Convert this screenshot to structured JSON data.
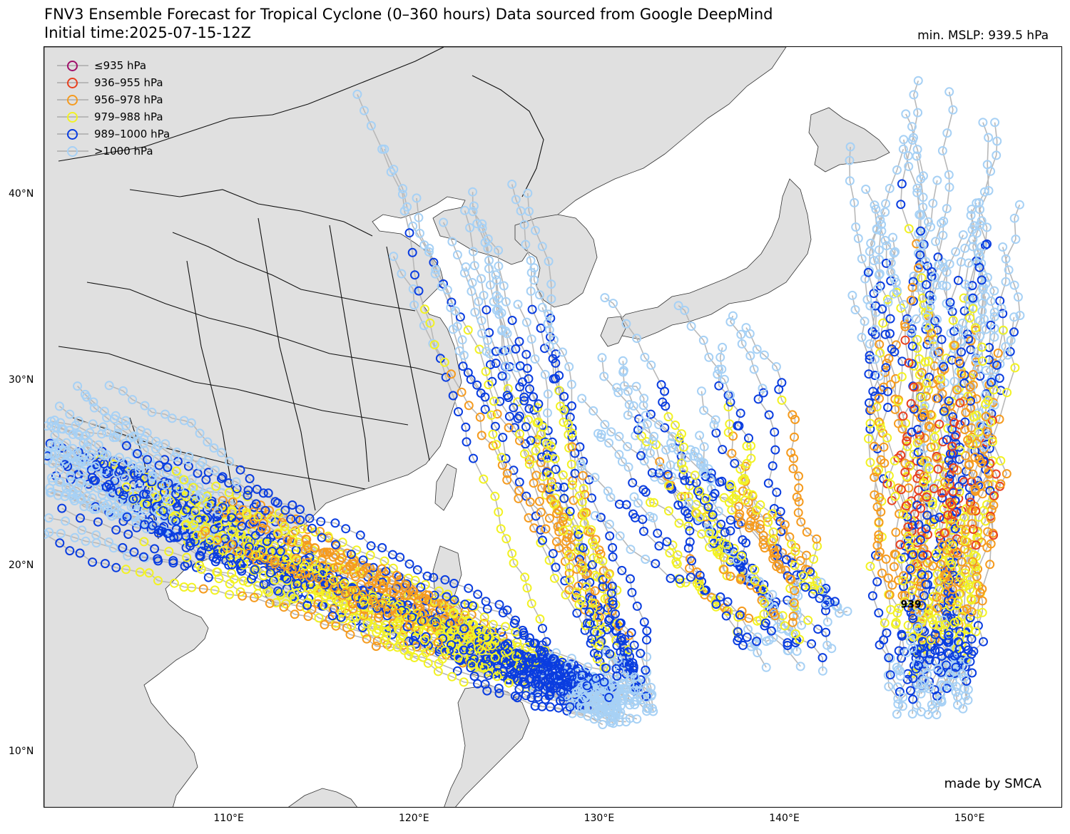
{
  "header": {
    "title": "FNV3 Ensemble Forecast for Tropical Cyclone (0–360 hours) Data sourced from Google DeepMind",
    "subtitle": "Initial time:2025-07-15-12Z",
    "min_mslp": "min. MSLP: 939.5 hPa"
  },
  "legend": [
    {
      "label": "≤935 hPa",
      "color": "#a0106a"
    },
    {
      "label": "936–955 hPa",
      "color": "#e8401f"
    },
    {
      "label": "956–978 hPa",
      "color": "#f59b1f"
    },
    {
      "label": "979–988 hPa",
      "color": "#f2f224"
    },
    {
      "label": "989–1000 hPa",
      "color": "#0a3de0"
    },
    {
      "label": ">1000 hPa",
      "color": "#a7d1f5"
    }
  ],
  "axes": {
    "lon_ticks": [
      {
        "value": 110,
        "label": "110°E"
      },
      {
        "value": 120,
        "label": "120°E"
      },
      {
        "value": 130,
        "label": "130°E"
      },
      {
        "value": 140,
        "label": "140°E"
      },
      {
        "value": 150,
        "label": "150°E"
      }
    ],
    "lat_ticks": [
      {
        "value": 40,
        "label": "40°N"
      },
      {
        "value": 30,
        "label": "30°N"
      },
      {
        "value": 20,
        "label": "20°N"
      },
      {
        "value": 10,
        "label": "10°N"
      }
    ],
    "lon_range": [
      100,
      155
    ],
    "lat_range": [
      7,
      48
    ]
  },
  "storm_label": {
    "text": "939",
    "lon": 146.8,
    "lat": 18.0
  },
  "credit": "made by SMCA",
  "land_color": "#e0e0e0",
  "track_color": "#b8b8b8"
}
